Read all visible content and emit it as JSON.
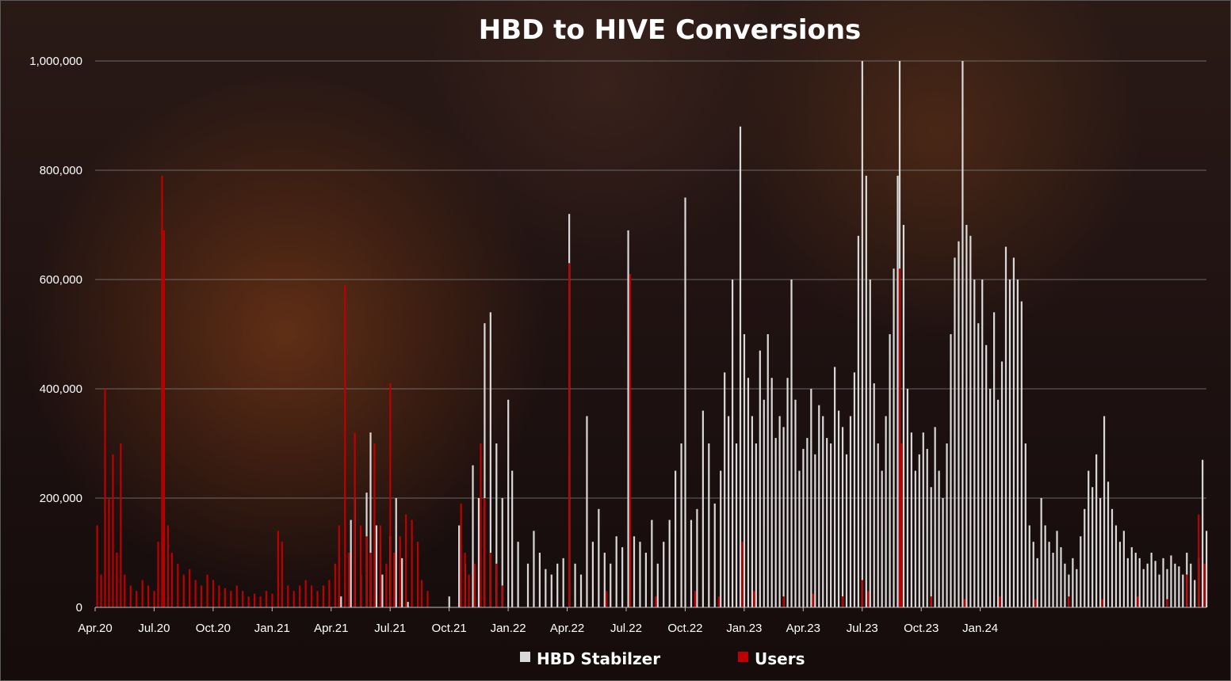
{
  "chart_data": {
    "type": "bar",
    "title": "HBD to HIVE Conversions",
    "xlabel": "",
    "ylabel": "",
    "ylim": [
      0,
      1000000
    ],
    "y_ticks": [
      "0",
      "200,000",
      "400,000",
      "600,000",
      "800,000",
      "1,000,000"
    ],
    "x_ticks": [
      "Apr.20",
      "Jul.20",
      "Oct.20",
      "Jan.21",
      "Apr.21",
      "Jul.21",
      "Oct.21",
      "Jan.22",
      "Apr.22",
      "Jul.22",
      "Oct.22",
      "Jan.23",
      "Apr.23",
      "Jul.23",
      "Oct.23",
      "Jan.24"
    ],
    "grid": true,
    "legend_position": "bottom",
    "colors": {
      "HBD Stabilzer": "#d9d9d9",
      "Users": "#c00000"
    },
    "series": [
      {
        "name": "HBD Stabilzer",
        "points": [
          [
            12.5,
            20000
          ],
          [
            13.0,
            160000
          ],
          [
            13.2,
            200000
          ],
          [
            13.5,
            60000
          ],
          [
            13.8,
            210000
          ],
          [
            14.0,
            320000
          ],
          [
            14.3,
            150000
          ],
          [
            14.6,
            60000
          ],
          [
            15.0,
            130000
          ],
          [
            15.3,
            200000
          ],
          [
            15.6,
            90000
          ],
          [
            15.9,
            10000
          ],
          [
            18.0,
            20000
          ],
          [
            18.5,
            150000
          ],
          [
            18.8,
            80000
          ],
          [
            19.2,
            260000
          ],
          [
            19.5,
            200000
          ],
          [
            19.8,
            520000
          ],
          [
            20.1,
            540000
          ],
          [
            20.4,
            300000
          ],
          [
            20.7,
            200000
          ],
          [
            21.0,
            380000
          ],
          [
            21.2,
            250000
          ],
          [
            21.5,
            120000
          ],
          [
            22.0,
            80000
          ],
          [
            22.3,
            140000
          ],
          [
            22.6,
            100000
          ],
          [
            22.9,
            70000
          ],
          [
            23.2,
            60000
          ],
          [
            23.5,
            80000
          ],
          [
            23.8,
            90000
          ],
          [
            24.1,
            720000
          ],
          [
            24.4,
            80000
          ],
          [
            24.7,
            60000
          ],
          [
            25.0,
            350000
          ],
          [
            25.3,
            120000
          ],
          [
            25.6,
            180000
          ],
          [
            25.9,
            100000
          ],
          [
            26.2,
            80000
          ],
          [
            26.5,
            130000
          ],
          [
            26.8,
            110000
          ],
          [
            27.1,
            690000
          ],
          [
            27.4,
            130000
          ],
          [
            27.7,
            120000
          ],
          [
            28.0,
            100000
          ],
          [
            28.3,
            160000
          ],
          [
            28.6,
            80000
          ],
          [
            28.9,
            120000
          ],
          [
            29.2,
            160000
          ],
          [
            29.5,
            250000
          ],
          [
            29.8,
            300000
          ],
          [
            30.0,
            750000
          ],
          [
            30.3,
            160000
          ],
          [
            30.6,
            180000
          ],
          [
            30.9,
            360000
          ],
          [
            31.2,
            300000
          ],
          [
            31.5,
            190000
          ],
          [
            31.8,
            250000
          ],
          [
            32.0,
            430000
          ],
          [
            32.2,
            350000
          ],
          [
            32.4,
            600000
          ],
          [
            32.6,
            300000
          ],
          [
            32.8,
            880000
          ],
          [
            33.0,
            500000
          ],
          [
            33.2,
            420000
          ],
          [
            33.4,
            350000
          ],
          [
            33.6,
            300000
          ],
          [
            33.8,
            470000
          ],
          [
            34.0,
            380000
          ],
          [
            34.2,
            500000
          ],
          [
            34.4,
            420000
          ],
          [
            34.6,
            310000
          ],
          [
            34.8,
            350000
          ],
          [
            35.0,
            330000
          ],
          [
            35.2,
            420000
          ],
          [
            35.4,
            600000
          ],
          [
            35.6,
            380000
          ],
          [
            35.8,
            250000
          ],
          [
            36.0,
            290000
          ],
          [
            36.2,
            310000
          ],
          [
            36.4,
            400000
          ],
          [
            36.6,
            280000
          ],
          [
            36.8,
            370000
          ],
          [
            37.0,
            350000
          ],
          [
            37.2,
            310000
          ],
          [
            37.4,
            300000
          ],
          [
            37.6,
            440000
          ],
          [
            37.8,
            360000
          ],
          [
            38.0,
            330000
          ],
          [
            38.2,
            280000
          ],
          [
            38.4,
            350000
          ],
          [
            38.6,
            430000
          ],
          [
            38.8,
            680000
          ],
          [
            39.0,
            1000000
          ],
          [
            39.2,
            790000
          ],
          [
            39.4,
            600000
          ],
          [
            39.6,
            410000
          ],
          [
            39.8,
            300000
          ],
          [
            40.0,
            250000
          ],
          [
            40.2,
            350000
          ],
          [
            40.4,
            500000
          ],
          [
            40.6,
            620000
          ],
          [
            40.8,
            790000
          ],
          [
            40.9,
            1000000
          ],
          [
            41.1,
            700000
          ],
          [
            41.3,
            400000
          ],
          [
            41.5,
            320000
          ],
          [
            41.7,
            250000
          ],
          [
            41.9,
            280000
          ],
          [
            42.1,
            320000
          ],
          [
            42.3,
            290000
          ],
          [
            42.5,
            220000
          ],
          [
            42.7,
            330000
          ],
          [
            42.9,
            250000
          ],
          [
            43.1,
            200000
          ],
          [
            43.3,
            300000
          ],
          [
            43.5,
            500000
          ],
          [
            43.7,
            640000
          ],
          [
            43.9,
            670000
          ],
          [
            44.1,
            1000000
          ],
          [
            44.3,
            700000
          ],
          [
            44.5,
            680000
          ],
          [
            44.7,
            600000
          ],
          [
            44.9,
            520000
          ],
          [
            45.1,
            600000
          ],
          [
            45.3,
            480000
          ],
          [
            45.5,
            400000
          ],
          [
            45.7,
            540000
          ],
          [
            45.9,
            380000
          ],
          [
            46.1,
            450000
          ],
          [
            46.3,
            660000
          ],
          [
            46.5,
            600000
          ],
          [
            46.7,
            640000
          ],
          [
            46.9,
            600000
          ],
          [
            47.1,
            560000
          ],
          [
            47.3,
            300000
          ],
          [
            47.5,
            150000
          ],
          [
            47.7,
            120000
          ],
          [
            47.9,
            90000
          ],
          [
            48.1,
            200000
          ],
          [
            48.3,
            150000
          ],
          [
            48.5,
            120000
          ],
          [
            48.7,
            100000
          ],
          [
            48.9,
            140000
          ],
          [
            49.1,
            110000
          ],
          [
            49.3,
            80000
          ],
          [
            49.5,
            60000
          ],
          [
            49.7,
            90000
          ],
          [
            49.9,
            70000
          ],
          [
            50.1,
            130000
          ],
          [
            50.3,
            180000
          ],
          [
            50.5,
            250000
          ],
          [
            50.7,
            220000
          ],
          [
            50.9,
            280000
          ],
          [
            51.1,
            200000
          ],
          [
            51.3,
            350000
          ],
          [
            51.5,
            230000
          ],
          [
            51.7,
            180000
          ],
          [
            51.9,
            150000
          ],
          [
            52.1,
            120000
          ],
          [
            52.3,
            140000
          ],
          [
            52.5,
            90000
          ],
          [
            52.7,
            110000
          ],
          [
            52.9,
            100000
          ],
          [
            53.1,
            90000
          ],
          [
            53.3,
            70000
          ],
          [
            53.5,
            80000
          ],
          [
            53.7,
            100000
          ],
          [
            53.9,
            85000
          ],
          [
            54.1,
            60000
          ],
          [
            54.3,
            90000
          ],
          [
            54.5,
            70000
          ],
          [
            54.7,
            95000
          ],
          [
            54.9,
            80000
          ],
          [
            55.1,
            75000
          ],
          [
            55.3,
            60000
          ],
          [
            55.5,
            100000
          ],
          [
            55.7,
            80000
          ],
          [
            55.9,
            50000
          ],
          [
            56.1,
            90000
          ],
          [
            56.3,
            270000
          ],
          [
            56.5,
            140000
          ]
        ]
      },
      {
        "name": "Users",
        "points": [
          [
            0.1,
            150000
          ],
          [
            0.3,
            60000
          ],
          [
            0.5,
            400000
          ],
          [
            0.7,
            200000
          ],
          [
            0.9,
            280000
          ],
          [
            1.1,
            100000
          ],
          [
            1.3,
            300000
          ],
          [
            1.5,
            60000
          ],
          [
            1.8,
            40000
          ],
          [
            2.1,
            30000
          ],
          [
            2.4,
            50000
          ],
          [
            2.7,
            40000
          ],
          [
            3.0,
            30000
          ],
          [
            3.2,
            120000
          ],
          [
            3.4,
            790000
          ],
          [
            3.5,
            690000
          ],
          [
            3.7,
            150000
          ],
          [
            3.9,
            100000
          ],
          [
            4.2,
            80000
          ],
          [
            4.5,
            60000
          ],
          [
            4.8,
            70000
          ],
          [
            5.1,
            50000
          ],
          [
            5.4,
            40000
          ],
          [
            5.7,
            60000
          ],
          [
            6.0,
            50000
          ],
          [
            6.3,
            40000
          ],
          [
            6.6,
            35000
          ],
          [
            6.9,
            30000
          ],
          [
            7.2,
            40000
          ],
          [
            7.5,
            30000
          ],
          [
            7.8,
            20000
          ],
          [
            8.1,
            25000
          ],
          [
            8.4,
            20000
          ],
          [
            8.7,
            30000
          ],
          [
            9.0,
            25000
          ],
          [
            9.3,
            140000
          ],
          [
            9.5,
            120000
          ],
          [
            9.8,
            40000
          ],
          [
            10.1,
            30000
          ],
          [
            10.4,
            40000
          ],
          [
            10.7,
            50000
          ],
          [
            11.0,
            40000
          ],
          [
            11.3,
            30000
          ],
          [
            11.6,
            40000
          ],
          [
            11.9,
            50000
          ],
          [
            12.2,
            80000
          ],
          [
            12.4,
            150000
          ],
          [
            12.7,
            590000
          ],
          [
            12.9,
            100000
          ],
          [
            13.2,
            320000
          ],
          [
            13.5,
            150000
          ],
          [
            13.8,
            130000
          ],
          [
            14.0,
            100000
          ],
          [
            14.2,
            300000
          ],
          [
            14.5,
            150000
          ],
          [
            14.8,
            80000
          ],
          [
            15.0,
            410000
          ],
          [
            15.2,
            100000
          ],
          [
            15.5,
            130000
          ],
          [
            15.8,
            170000
          ],
          [
            16.1,
            160000
          ],
          [
            16.4,
            120000
          ],
          [
            16.6,
            50000
          ],
          [
            16.9,
            30000
          ],
          [
            18.6,
            190000
          ],
          [
            18.8,
            100000
          ],
          [
            19.0,
            60000
          ],
          [
            19.3,
            80000
          ],
          [
            19.6,
            300000
          ],
          [
            19.8,
            200000
          ],
          [
            20.1,
            100000
          ],
          [
            20.4,
            80000
          ],
          [
            20.7,
            40000
          ],
          [
            24.1,
            630000
          ],
          [
            26.0,
            30000
          ],
          [
            27.2,
            610000
          ],
          [
            28.5,
            20000
          ],
          [
            30.5,
            30000
          ],
          [
            31.7,
            20000
          ],
          [
            32.9,
            120000
          ],
          [
            33.5,
            30000
          ],
          [
            35.0,
            20000
          ],
          [
            36.5,
            25000
          ],
          [
            38.0,
            20000
          ],
          [
            39.0,
            50000
          ],
          [
            39.3,
            30000
          ],
          [
            40.9,
            620000
          ],
          [
            41.0,
            300000
          ],
          [
            42.5,
            20000
          ],
          [
            44.2,
            15000
          ],
          [
            46.0,
            20000
          ],
          [
            47.8,
            15000
          ],
          [
            49.5,
            20000
          ],
          [
            51.2,
            15000
          ],
          [
            53.0,
            20000
          ],
          [
            54.5,
            15000
          ],
          [
            55.5,
            60000
          ],
          [
            56.1,
            170000
          ],
          [
            56.4,
            80000
          ]
        ]
      }
    ]
  }
}
